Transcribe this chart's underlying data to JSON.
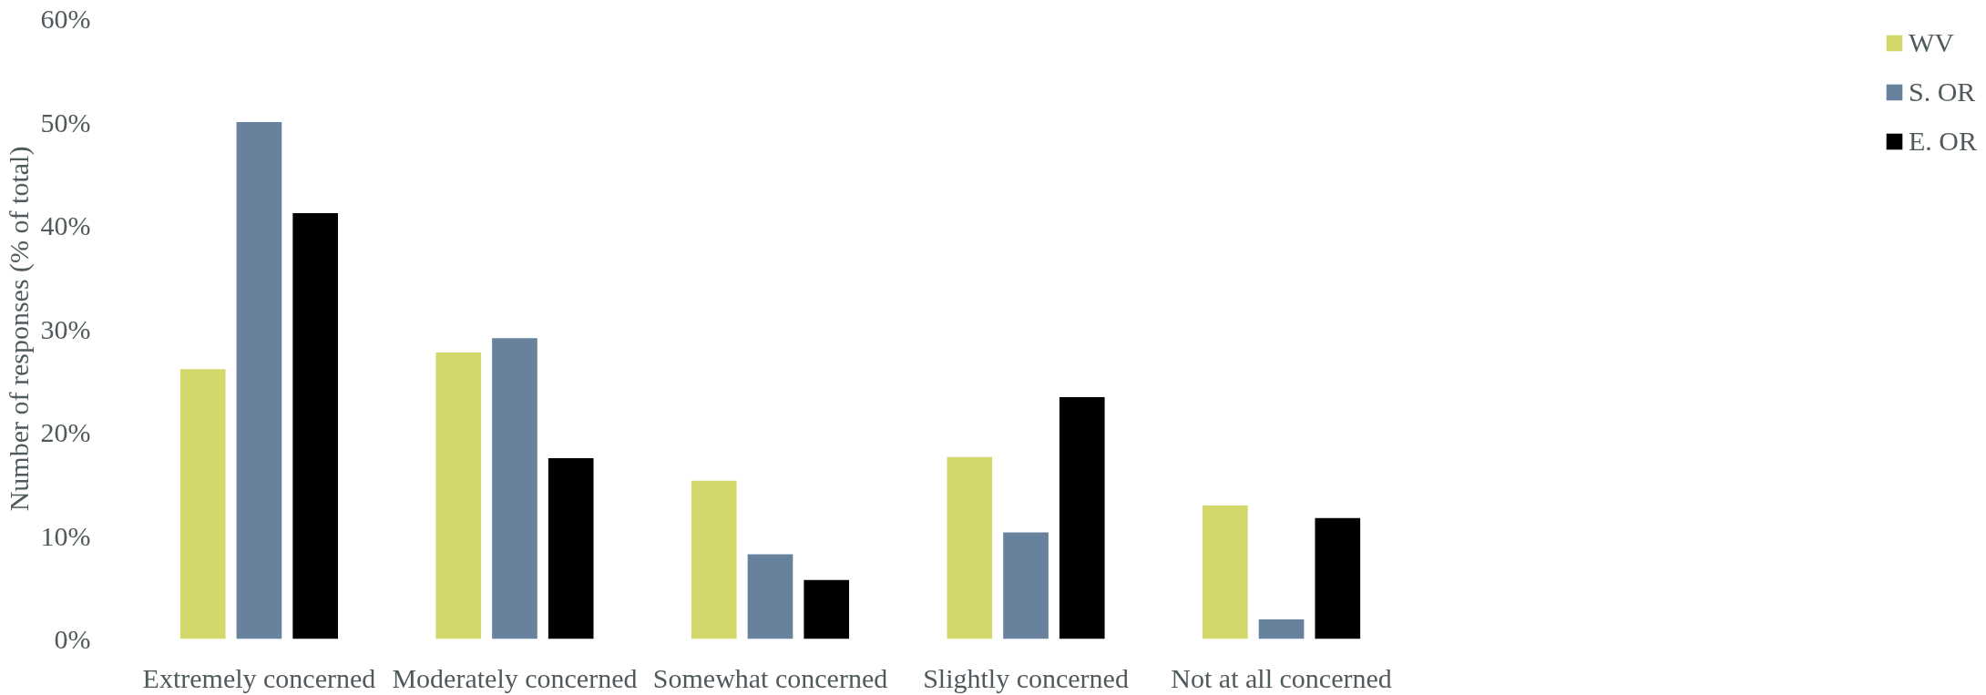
{
  "chart_data": {
    "type": "bar",
    "ylabel": "Number of responses (% of total)",
    "categories": [
      "Extremely concerned",
      "Moderately concerned",
      "Somewhat concerned",
      "Slightly concerned",
      "Not at all concerned"
    ],
    "series": [
      {
        "name": "WV",
        "color": "#d4d86b",
        "values": [
          26.1,
          27.7,
          15.3,
          17.6,
          12.9
        ]
      },
      {
        "name": "S. OR",
        "color": "#68829e",
        "values": [
          50.0,
          29.1,
          8.2,
          10.3,
          1.9
        ]
      },
      {
        "name": "E. OR",
        "color": "#000000",
        "values": [
          41.2,
          17.5,
          5.7,
          23.4,
          11.7
        ]
      }
    ],
    "ylim": [
      0,
      60
    ],
    "yticks": [
      {
        "value": 0,
        "label": "0%"
      },
      {
        "value": 10,
        "label": "10%"
      },
      {
        "value": 20,
        "label": "20%"
      },
      {
        "value": 30,
        "label": "30%"
      },
      {
        "value": 40,
        "label": "40%"
      },
      {
        "value": 50,
        "label": "50%"
      },
      {
        "value": 60,
        "label": "60%"
      }
    ],
    "grid": false,
    "legend": "right"
  }
}
